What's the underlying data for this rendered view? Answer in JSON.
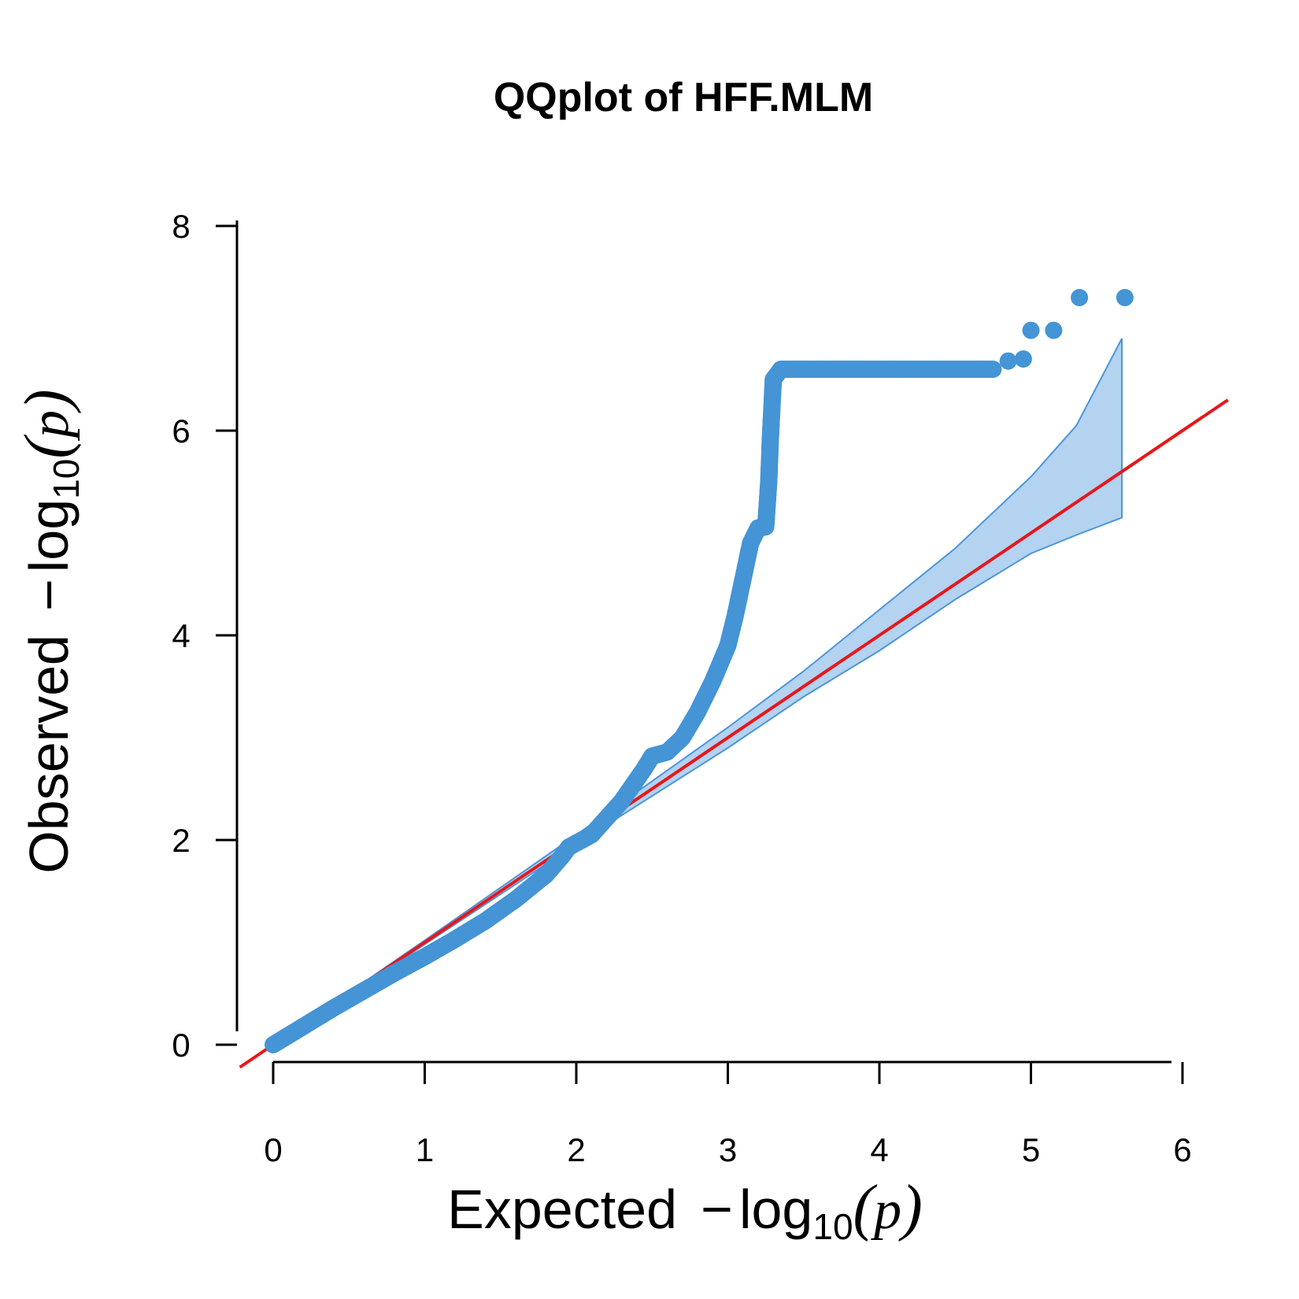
{
  "chart_data": {
    "type": "scatter",
    "title": "QQplot of HFF.MLM",
    "xlabel": {
      "prefix": "Expected",
      "minus": "−",
      "log": "log",
      "base": "10",
      "open": "(",
      "var": "p",
      "close": ")"
    },
    "ylabel": {
      "prefix": "Observed",
      "minus": "−",
      "log": "log",
      "base": "10",
      "open": "(",
      "var": "p",
      "close": ")"
    },
    "xlim": [
      0,
      6
    ],
    "ylim": [
      0,
      8
    ],
    "x_ticks": [
      "0",
      "1",
      "2",
      "3",
      "4",
      "5",
      "6"
    ],
    "y_ticks": [
      "0",
      "2",
      "4",
      "6",
      "8"
    ],
    "colors": {
      "points": "#4494d6",
      "band_fill": "#b3d3f0",
      "band_line": "#4d96d8",
      "reference": "#e8161b"
    },
    "reference_line": {
      "slope": 1,
      "intercept": 0
    },
    "confidence_band": {
      "x": [
        0.0,
        1.0,
        2.0,
        3.0,
        3.5,
        4.0,
        4.5,
        5.0,
        5.3,
        5.6
      ],
      "upper": [
        0.0,
        1.02,
        2.05,
        3.1,
        3.65,
        4.25,
        4.85,
        5.55,
        6.05,
        6.9
      ],
      "lower": [
        0.0,
        0.98,
        1.96,
        2.9,
        3.4,
        3.85,
        4.35,
        4.8,
        4.98,
        5.15
      ]
    },
    "qq_curve": [
      [
        0.0,
        0.0
      ],
      [
        0.2,
        0.18
      ],
      [
        0.4,
        0.36
      ],
      [
        0.6,
        0.53
      ],
      [
        0.8,
        0.7
      ],
      [
        1.0,
        0.86
      ],
      [
        1.2,
        1.03
      ],
      [
        1.4,
        1.21
      ],
      [
        1.6,
        1.42
      ],
      [
        1.8,
        1.66
      ],
      [
        1.9,
        1.83
      ],
      [
        1.95,
        1.93
      ],
      [
        2.1,
        2.05
      ],
      [
        2.3,
        2.38
      ],
      [
        2.45,
        2.7
      ],
      [
        2.5,
        2.82
      ],
      [
        2.6,
        2.86
      ],
      [
        2.7,
        3.0
      ],
      [
        2.8,
        3.25
      ],
      [
        2.9,
        3.55
      ],
      [
        3.0,
        3.9
      ],
      [
        3.05,
        4.2
      ],
      [
        3.1,
        4.55
      ],
      [
        3.15,
        4.9
      ],
      [
        3.2,
        5.05
      ],
      [
        3.25,
        5.06
      ],
      [
        3.27,
        5.5
      ],
      [
        3.28,
        5.9
      ],
      [
        3.29,
        6.2
      ],
      [
        3.3,
        6.5
      ],
      [
        3.35,
        6.6
      ],
      [
        4.75,
        6.6
      ]
    ],
    "top_points": [
      [
        4.85,
        6.68
      ],
      [
        4.95,
        6.7
      ],
      [
        5.0,
        6.98
      ],
      [
        5.15,
        6.98
      ],
      [
        5.32,
        7.3
      ],
      [
        5.62,
        7.3
      ]
    ]
  }
}
